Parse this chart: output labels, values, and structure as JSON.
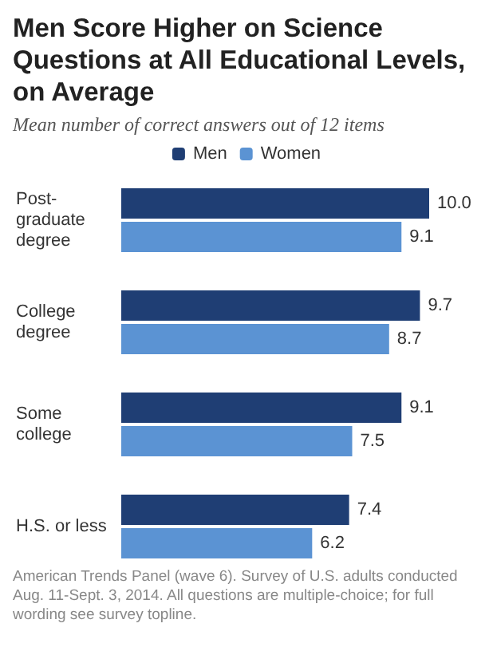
{
  "chart_data": {
    "type": "bar",
    "orientation": "horizontal",
    "title": "Men Score Higher on Science Questions at All Educational Levels, on Average",
    "subtitle": "Mean number of correct answers out of 12 items",
    "categories": [
      "Post-graduate degree",
      "College degree",
      "Some college",
      "H.S. or less"
    ],
    "series": [
      {
        "name": "Men",
        "color": "#1f3e74",
        "values": [
          10.0,
          9.7,
          9.1,
          7.4
        ],
        "value_labels": [
          "10.0",
          "9.7",
          "9.1",
          "7.4"
        ]
      },
      {
        "name": "Women",
        "color": "#5b93d3",
        "values": [
          9.1,
          8.7,
          7.5,
          6.2
        ],
        "value_labels": [
          "9.1",
          "8.7",
          "7.5",
          "6.2"
        ]
      }
    ],
    "legend": "top",
    "grid": false,
    "tick_labels": "y",
    "annotations": [
      "American Trends Panel (wave 6). Survey of U.S. adults conducted Aug. 11-Sept. 3, 2014. All questions are multiple-choice; for full wording see survey topline."
    ]
  }
}
